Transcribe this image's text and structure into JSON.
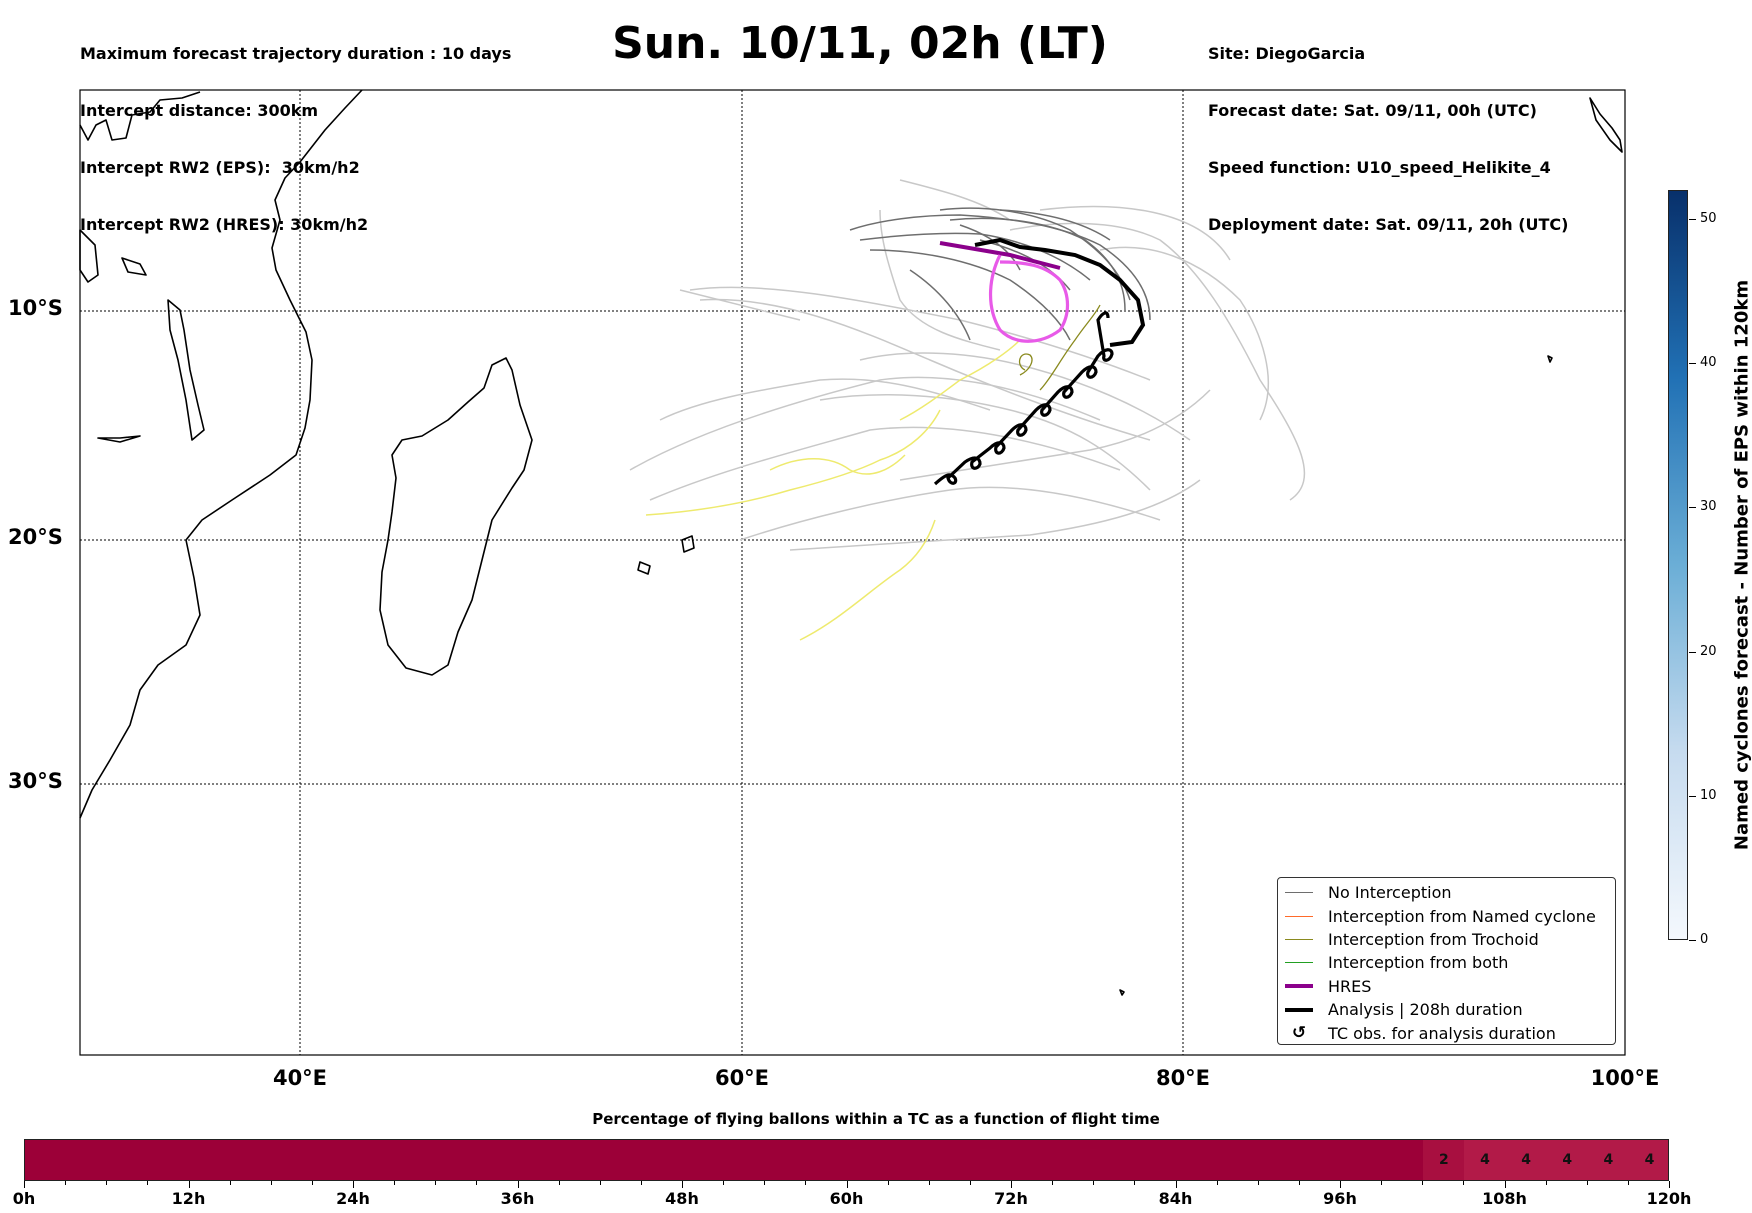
{
  "header": {
    "left_lines": [
      "Maximum forecast trajectory duration : 10 days",
      "Intercept distance: 300km",
      "Intercept RW2 (EPS):  30km/h2",
      "Intercept RW2 (HRES): 30km/h2"
    ],
    "title": "Sun. 10/11, 02h (LT)",
    "right_lines": [
      "Site: DiegoGarcia",
      "Forecast date: Sat. 09/11, 00h (UTC)",
      "Speed function: U10_speed_Helikite_4",
      "Deployment date: Sat. 09/11, 20h (UTC)"
    ]
  },
  "map": {
    "lon_labels": [
      "40°E",
      "60°E",
      "80°E",
      "100°E"
    ],
    "lat_labels": [
      "10°S",
      "20°S",
      "30°S"
    ],
    "gridlines": "dotted",
    "colors": {
      "no_interception": "#6e6e6e",
      "eps_light": "#c8c8c8",
      "trochoid": "#8a8a1e",
      "named_yellow": "#eeea6e",
      "hres": "#8b008b",
      "hres_circle": "#e85ae8",
      "analysis": "#000000"
    }
  },
  "legend": {
    "position": "lower-right",
    "items": [
      {
        "label": "No Interception",
        "color": "#6e6e6e",
        "style": "thin-line"
      },
      {
        "label": "Interception from Named cyclone",
        "color": "#ff6a2a",
        "style": "thin-line"
      },
      {
        "label": "Interception from Trochoid",
        "color": "#8a8a1e",
        "style": "thin-line"
      },
      {
        "label": "Interception from both",
        "color": "#22a022",
        "style": "thin-line"
      },
      {
        "label": "HRES",
        "color": "#8b008b",
        "style": "thick-line"
      },
      {
        "label": "Analysis | 208h duration",
        "color": "#000000",
        "style": "thick-line"
      },
      {
        "label": "TC obs. for analysis duration",
        "color": "#000000",
        "style": "cyclone-icon"
      }
    ]
  },
  "colorbar": {
    "label": "Named cyclones forecast - Number of EPS within 120km",
    "ticks": [
      "0",
      "10",
      "20",
      "30",
      "40",
      "50"
    ],
    "range": [
      0,
      52
    ],
    "colors": [
      "#f4f8fd",
      "#c6dbef",
      "#6baed6",
      "#2171b5",
      "#08306b"
    ]
  },
  "flight_bar": {
    "title": "Percentage of flying ballons within a TC as a function of flight time",
    "tick_labels": [
      "0h",
      "12h",
      "24h",
      "36h",
      "48h",
      "60h",
      "72h",
      "84h",
      "96h",
      "108h",
      "120h"
    ],
    "range_hours": [
      0,
      120
    ],
    "base_color": "#9c0038",
    "cells": [
      {
        "start_h": 102,
        "end_h": 105,
        "value": "2",
        "color": "#a80f40"
      },
      {
        "start_h": 105,
        "end_h": 108,
        "value": "4",
        "color": "#b21a48"
      },
      {
        "start_h": 108,
        "end_h": 111,
        "value": "4",
        "color": "#b21a48"
      },
      {
        "start_h": 111,
        "end_h": 114,
        "value": "4",
        "color": "#b21a48"
      },
      {
        "start_h": 114,
        "end_h": 117,
        "value": "4",
        "color": "#b21a48"
      },
      {
        "start_h": 117,
        "end_h": 120,
        "value": "4",
        "color": "#b21a48"
      }
    ]
  }
}
